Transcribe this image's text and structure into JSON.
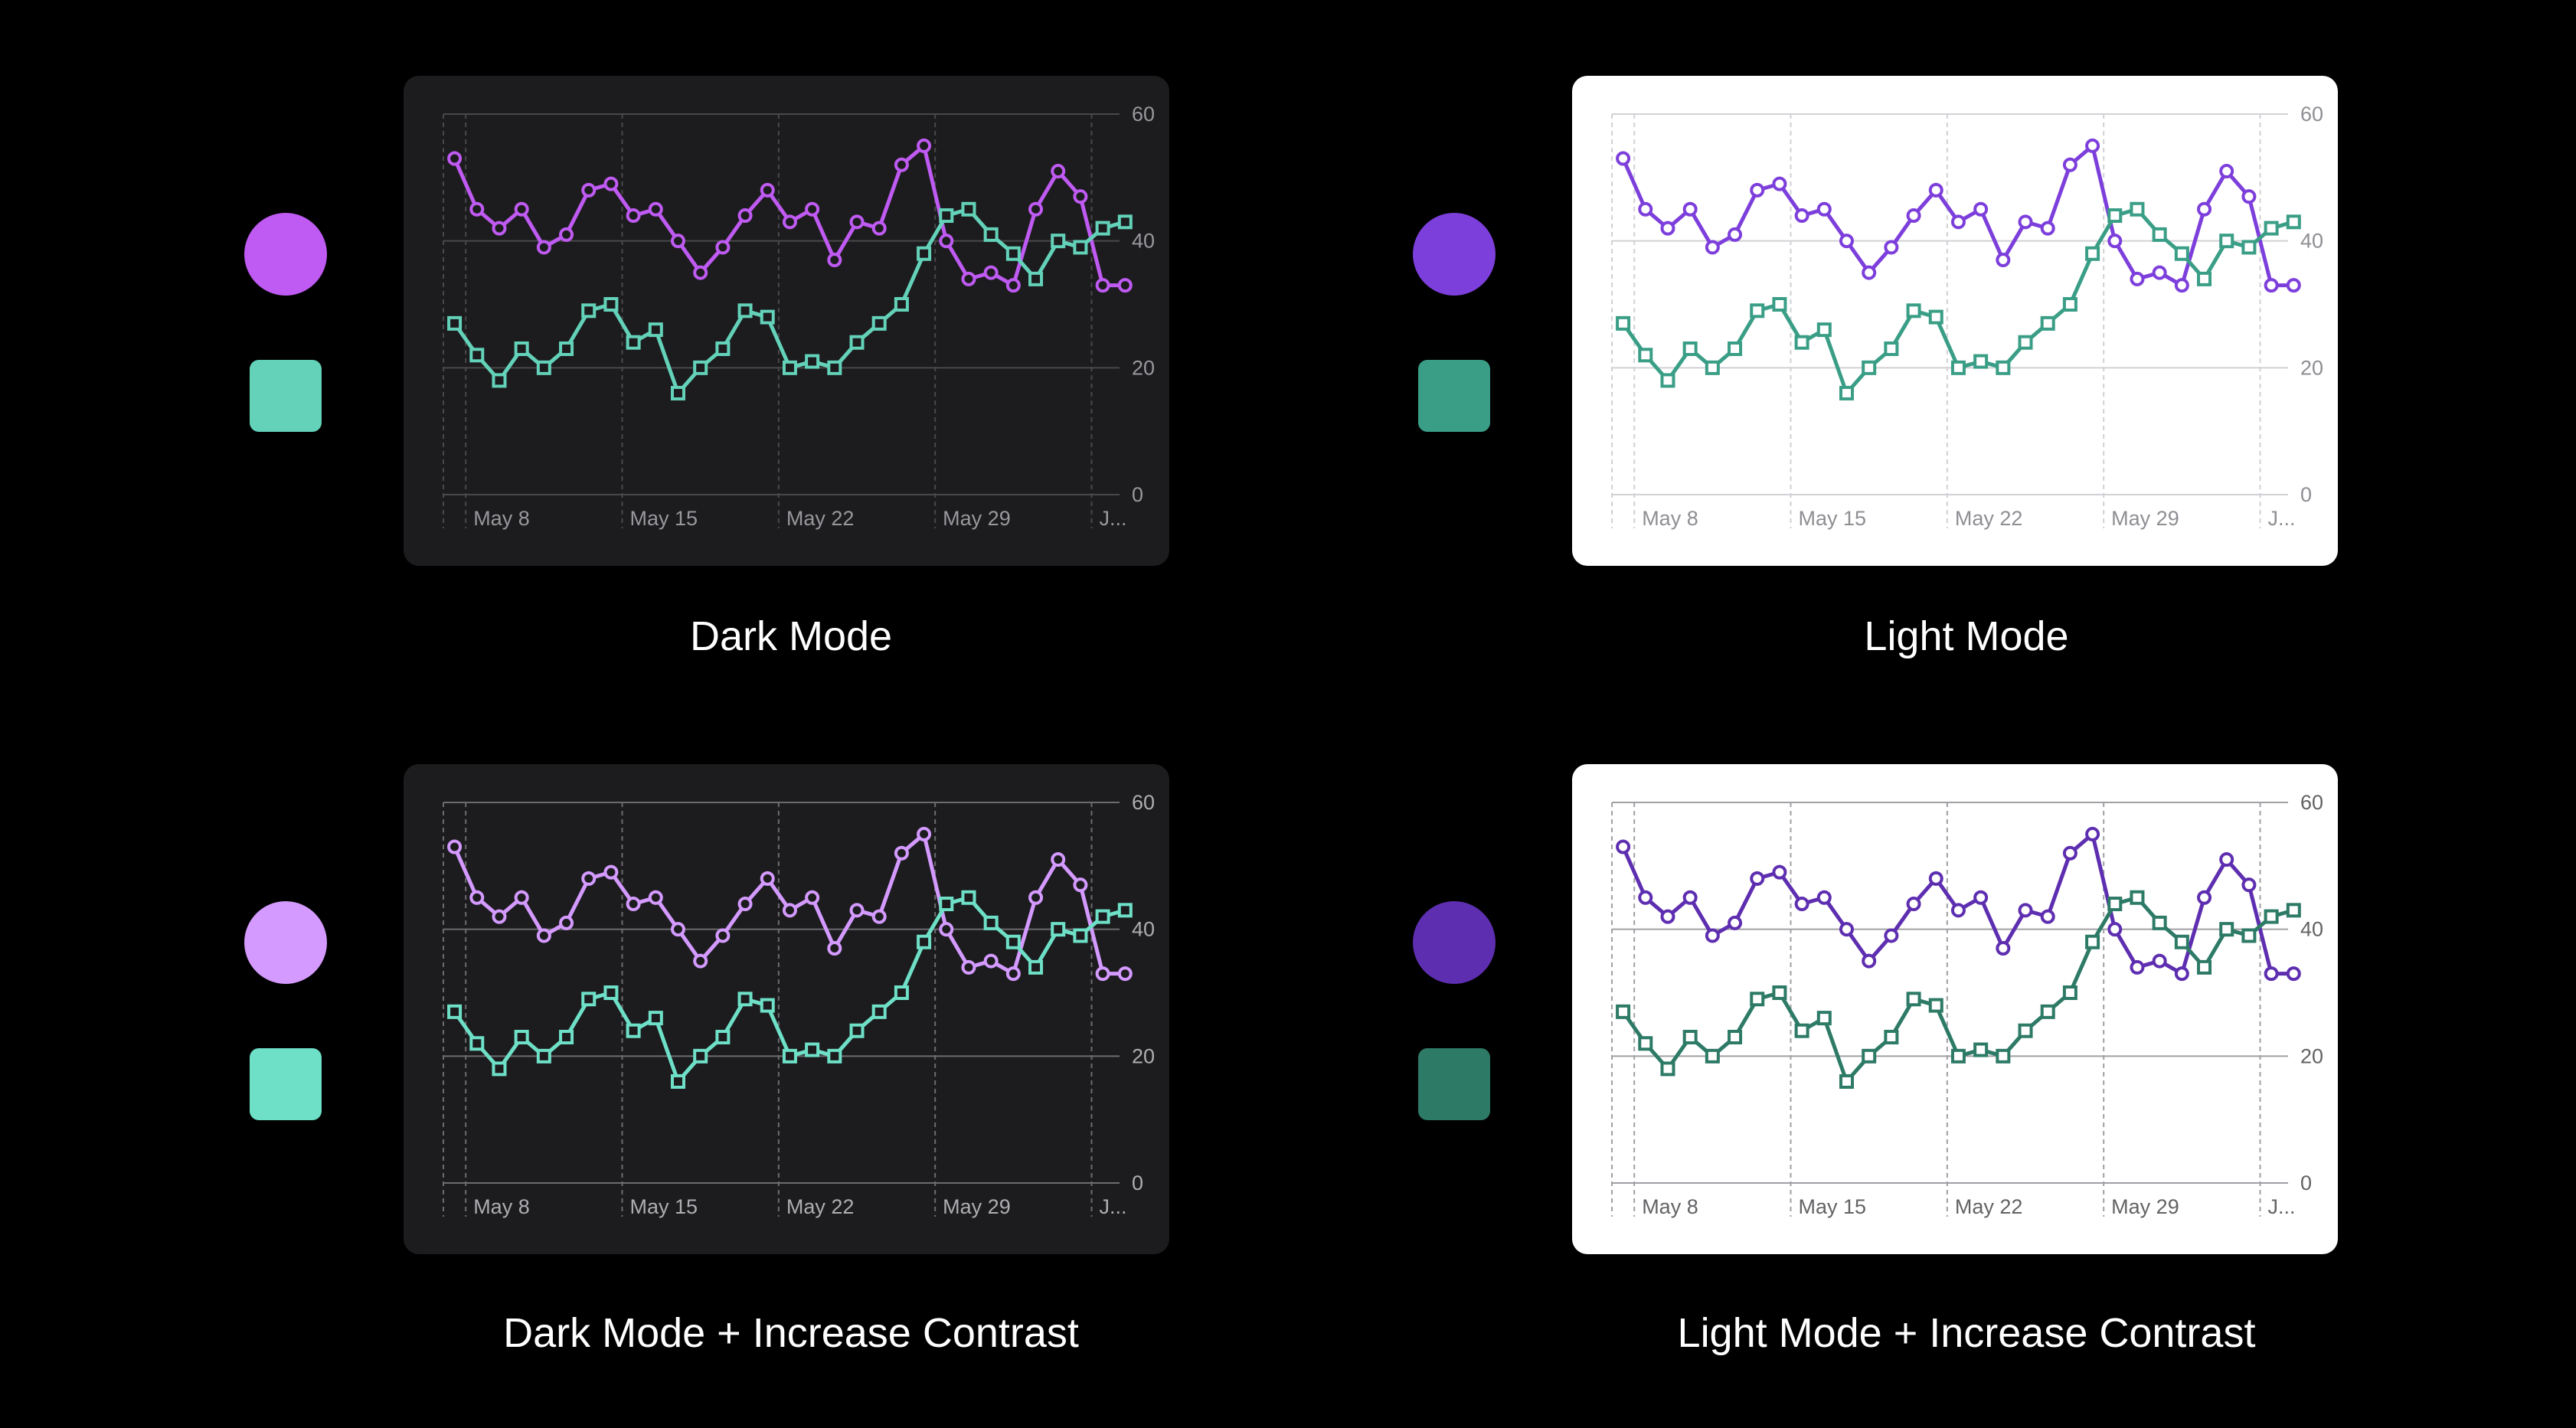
{
  "panels": [
    {
      "caption": "Dark Mode",
      "theme": {
        "bg": "#1c1c1e",
        "grid": "#48484a",
        "text": "#98989d",
        "purple": "#bf5af2",
        "teal": "#63d2b9"
      }
    },
    {
      "caption": "Light Mode",
      "theme": {
        "bg": "#ffffff",
        "grid": "#d1d1d6",
        "text": "#8e8e93",
        "purple": "#7d3fdb",
        "teal": "#3a9e86"
      }
    },
    {
      "caption": "Dark Mode + Increase Contrast",
      "theme": {
        "bg": "#1c1c1e",
        "grid": "#6c6c70",
        "text": "#aeaeb2",
        "purple": "#d49aff",
        "teal": "#6ee0c7"
      }
    },
    {
      "caption": "Light Mode + Increase Contrast",
      "theme": {
        "bg": "#ffffff",
        "grid": "#a0a0a5",
        "text": "#636366",
        "purple": "#5e2eb0",
        "teal": "#2d7a66"
      }
    }
  ],
  "chart_data": {
    "type": "line",
    "x": [
      "May 7",
      "May 8",
      "May 9",
      "May 10",
      "May 11",
      "May 12",
      "May 13",
      "May 14",
      "May 15",
      "May 16",
      "May 17",
      "May 18",
      "May 19",
      "May 20",
      "May 21",
      "May 22",
      "May 23",
      "May 24",
      "May 25",
      "May 26",
      "May 27",
      "May 28",
      "May 29",
      "May 30",
      "May 31",
      "Jun 1",
      "Jun 2",
      "Jun 3",
      "Jun 4",
      "Jun 5",
      "Jun 6"
    ],
    "x_tick_labels": [
      "May 8",
      "May 15",
      "May 22",
      "May 29",
      "J..."
    ],
    "y_ticks": [
      0,
      20,
      40,
      60
    ],
    "ylim": [
      0,
      60
    ],
    "grid": true,
    "series": [
      {
        "marker": "circle",
        "values": [
          53,
          45,
          42,
          45,
          39,
          41,
          48,
          49,
          44,
          45,
          40,
          35,
          39,
          44,
          48,
          43,
          45,
          37,
          43,
          42,
          52,
          55,
          40,
          34,
          35,
          33,
          45,
          51,
          47,
          33,
          33
        ]
      },
      {
        "marker": "square",
        "values": [
          27,
          22,
          18,
          23,
          20,
          23,
          29,
          30,
          24,
          26,
          16,
          20,
          23,
          29,
          28,
          20,
          21,
          20,
          24,
          27,
          30,
          38,
          44,
          45,
          41,
          38,
          34,
          40,
          39,
          42,
          43
        ]
      }
    ]
  }
}
